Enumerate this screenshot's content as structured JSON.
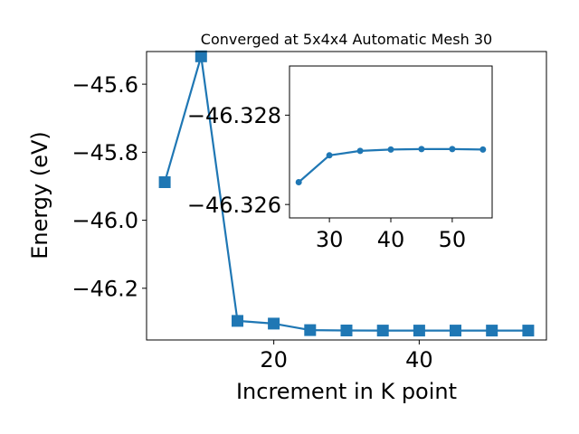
{
  "chart_data": [
    {
      "type": "line",
      "title": "Converged at 5x4x4 Automatic Mesh 30",
      "xlabel": "Increment in K point",
      "ylabel": "Energy (eV)",
      "xlim": [
        2.5,
        57.5
      ],
      "ylim": [
        -46.352,
        -45.504
      ],
      "x_ticks": [
        20,
        40
      ],
      "x_tick_labels": [
        "20",
        "40"
      ],
      "y_ticks": [
        -45.6,
        -45.8,
        -46.0,
        -46.2
      ],
      "y_tick_labels": [
        "−45.6",
        "−45.8",
        "−46.0",
        "−46.2"
      ],
      "marker": "square",
      "color": "#1f77b4",
      "grid": false,
      "series": [
        {
          "x": [
            5,
            10,
            15,
            20,
            25,
            30,
            35,
            40,
            45,
            50,
            55
          ],
          "y": [
            -45.888,
            -45.518,
            -46.296,
            -46.304,
            -46.323,
            -46.3241,
            -46.3243,
            -46.3244,
            -46.3244,
            -46.3244,
            -46.3244
          ]
        }
      ]
    },
    {
      "type": "line",
      "title": "",
      "xlabel": "",
      "ylabel": "",
      "xlim": [
        23.5,
        56.5
      ],
      "ylim": [
        -46.3257,
        -46.3291
      ],
      "x_ticks": [
        30,
        40,
        50
      ],
      "x_tick_labels": [
        "30",
        "40",
        "50"
      ],
      "y_ticks": [
        -46.328,
        -46.326
      ],
      "y_tick_labels": [
        "−46.328",
        "−46.326"
      ],
      "marker": "circle",
      "color": "#1f77b4",
      "grid": false,
      "series": [
        {
          "x": [
            25,
            30,
            35,
            40,
            45,
            50,
            55
          ],
          "y": [
            -46.3265,
            -46.3271,
            -46.3272,
            -46.32723,
            -46.32724,
            -46.32724,
            -46.32723
          ]
        }
      ]
    }
  ]
}
